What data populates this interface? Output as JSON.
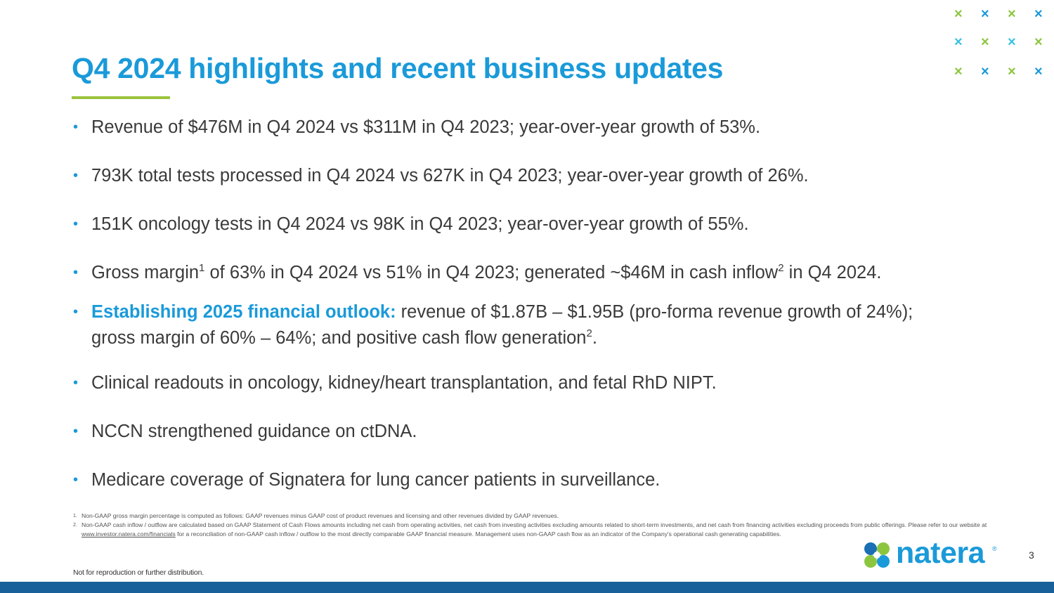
{
  "slide": {
    "title": "Q4 2024 highlights and recent business updates",
    "page_number": "3",
    "disclaimer": "Not for reproduction or further distribution.",
    "colors": {
      "accent_blue": "#1a9ad9",
      "accent_green": "#9bc33c",
      "footer_bar": "#17609a",
      "body_text": "#3a3a3a"
    }
  },
  "bullets": {
    "b1": "Revenue of $476M in Q4 2024 vs $311M in Q4 2023; year-over-year growth of 53%.",
    "b2": "793K total tests processed in Q4 2024 vs 627K in Q4 2023; year-over-year growth of 26%.",
    "b3": "151K oncology tests in Q4 2024 vs 98K in Q4 2023; year-over-year growth of 55%.",
    "b4": {
      "part1": "Gross margin",
      "sup1": "1",
      "part2": " of 63% in Q4 2024 vs 51% in Q4 2023; generated ~$46M in cash inflow",
      "sup2": "2",
      "part3": " in Q4 2024."
    },
    "b5": {
      "highlight": "Establishing 2025 financial outlook:",
      "line1": " revenue of $1.87B – $1.95B (pro-forma revenue growth of 24%);",
      "line2": "gross margin of 60% – 64%; and positive cash flow generation",
      "sup": "2",
      "end": "."
    },
    "b6": "Clinical readouts in oncology, kidney/heart transplantation, and fetal RhD NIPT.",
    "b7": "NCCN strengthened guidance on ctDNA.",
    "b8": "Medicare coverage of Signatera for lung cancer patients in surveillance."
  },
  "footnotes": {
    "fn1_num": "1.",
    "fn1": "Non-GAAP gross margin percentage is computed as follows: GAAP revenues minus GAAP cost of product revenues and licensing and other revenues divided by GAAP revenues.",
    "fn2_num": "2.",
    "fn2_part1": "Non-GAAP cash inflow / outflow are calculated based on GAAP Statement of Cash Flows amounts including net cash from operating activities, net cash from investing activities excluding amounts related to short-term investments, and net cash from financing activities excluding proceeds from public offerings. Please refer to our website at ",
    "fn2_link": "www.investor.natera.com/financials",
    "fn2_part2": " for a reconciliation of non-GAAP cash inflow / outflow to the most directly comparable GAAP financial measure. Management uses non-GAAP cash flow as an indicator of the Company's operational cash generating capabilities."
  },
  "logo": {
    "name": "natera",
    "reg": "®",
    "icon": "natera-logo-icon"
  },
  "decoration": {
    "x_glyph": "×",
    "x_colors": [
      [
        "#8cc63f",
        "#1a9ad9",
        "#8cc63f",
        "#1a9ad9"
      ],
      [
        "#35c2e0",
        "#8cc63f",
        "#35c2e0",
        "#8cc63f"
      ],
      [
        "#8cc63f",
        "#1a9ad9",
        "#8cc63f",
        "#1a9ad9"
      ]
    ]
  }
}
